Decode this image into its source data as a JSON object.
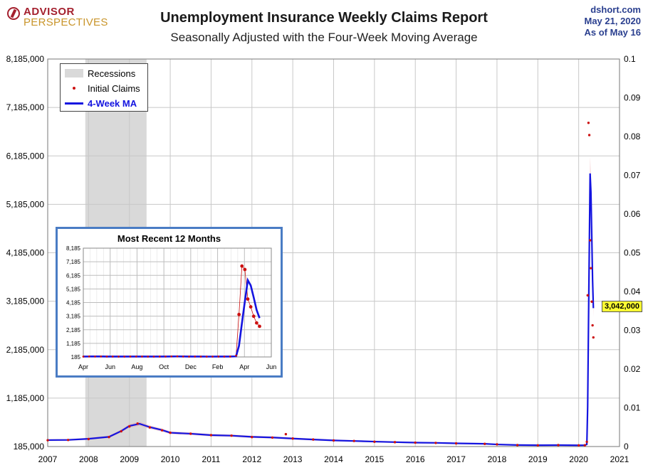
{
  "header": {
    "logo_line1": "ADVISOR",
    "logo_line2": "PERSPECTIVES",
    "title": "Unemployment Insurance Weekly Claims Report",
    "subtitle": "Seasonally Adjusted with the Four-Week Moving Average",
    "source": "dshort.com",
    "date": "May 21, 2020",
    "as_of": "As of May 16"
  },
  "legend": {
    "recessions": "Recessions",
    "initial_claims": "Initial Claims",
    "ma": "4-Week MA"
  },
  "callout": {
    "label": "3,042,000"
  },
  "colors": {
    "claims": "#cc1111",
    "ma": "#1414e0",
    "recession": "#d9d9d9",
    "inset_border": "#4a7cc4",
    "callout_bg": "#ffff33"
  },
  "chart_data": [
    {
      "type": "line",
      "title": "Unemployment Insurance Weekly Claims Report",
      "subtitle": "Seasonally Adjusted with the Four-Week Moving Average",
      "x_ticks": [
        "2007",
        "2008",
        "2009",
        "2010",
        "2011",
        "2012",
        "2013",
        "2014",
        "2015",
        "2016",
        "2017",
        "2018",
        "2019",
        "2020",
        "2021"
      ],
      "xlim": [
        2007,
        2021
      ],
      "y_ticks_left": [
        "185,000",
        "1,185,000",
        "2,185,000",
        "3,185,000",
        "4,185,000",
        "5,185,000",
        "6,185,000",
        "7,185,000",
        "8,185,000"
      ],
      "ylim_left": [
        185000,
        8185000
      ],
      "y_ticks_right": [
        "0",
        "0.01",
        "0.02",
        "0.03",
        "0.04",
        "0.05",
        "0.06",
        "0.07",
        "0.08",
        "0.09",
        "0.1"
      ],
      "ylim_right": [
        0,
        0.1
      ],
      "grid": true,
      "legend_position": "top-left",
      "recessions": [
        [
          2007.92,
          2009.42
        ]
      ],
      "series": [
        {
          "name": "Initial Claims",
          "style": "dots",
          "x": [
            2007.0,
            2007.5,
            2008.0,
            2008.5,
            2008.8,
            2009.0,
            2009.2,
            2009.5,
            2009.8,
            2010.0,
            2010.5,
            2011.0,
            2011.5,
            2012.0,
            2012.5,
            2012.83,
            2013.0,
            2013.5,
            2014.0,
            2014.5,
            2015.0,
            2015.5,
            2016.0,
            2016.5,
            2017.0,
            2017.7,
            2018.0,
            2018.5,
            2019.0,
            2019.5,
            2020.0,
            2020.15,
            2020.2,
            2020.22,
            2020.24,
            2020.26,
            2020.28,
            2020.3,
            2020.32,
            2020.34,
            2020.36
          ],
          "y": [
            315000,
            320000,
            340000,
            380000,
            500000,
            600000,
            660000,
            580000,
            520000,
            470000,
            450000,
            420000,
            410000,
            380000,
            370000,
            440000,
            350000,
            330000,
            310000,
            300000,
            285000,
            275000,
            265000,
            260000,
            250000,
            240000,
            230000,
            215000,
            210000,
            215000,
            210000,
            211000,
            282000,
            3307000,
            6867000,
            6615000,
            4442000,
            3867000,
            3176000,
            2687000,
            2438000
          ]
        },
        {
          "name": "4-Week MA",
          "style": "line",
          "x": [
            2007.0,
            2007.5,
            2008.0,
            2008.5,
            2008.8,
            2009.0,
            2009.25,
            2009.5,
            2009.8,
            2010.0,
            2010.5,
            2011.0,
            2011.5,
            2012.0,
            2012.5,
            2013.0,
            2013.5,
            2014.0,
            2014.5,
            2015.0,
            2015.5,
            2016.0,
            2016.5,
            2017.0,
            2017.7,
            2018.0,
            2018.5,
            2019.0,
            2019.5,
            2020.0,
            2020.15,
            2020.2,
            2020.22,
            2020.24,
            2020.26,
            2020.28,
            2020.3,
            2020.32,
            2020.34,
            2020.36
          ],
          "y": [
            318000,
            322000,
            345000,
            385000,
            505000,
            610000,
            655000,
            585000,
            525000,
            470000,
            450000,
            420000,
            410000,
            385000,
            372000,
            350000,
            330000,
            312000,
            300000,
            287000,
            276000,
            266000,
            261000,
            251000,
            242000,
            228000,
            216000,
            212000,
            214000,
            211000,
            212000,
            230000,
            1004000,
            2674000,
            4272000,
            5823000,
            5441000,
            4567000,
            3638000,
            3042000
          ]
        }
      ],
      "annotations": [
        "3,042,000"
      ]
    },
    {
      "type": "line",
      "title": "Most Recent 12 Months",
      "x_ticks": [
        "Apr",
        "Jun",
        "Aug",
        "Oct",
        "Dec",
        "Feb",
        "Apr",
        "Jun"
      ],
      "y_ticks": [
        "185",
        "1,185",
        "2,185",
        "3,185",
        "4,185",
        "5,185",
        "6,185",
        "7,185",
        "8,185"
      ],
      "ylim": [
        185,
        8185
      ],
      "y_unit": "thousands",
      "grid": true,
      "series": [
        {
          "name": "Initial Claims",
          "style": "dots",
          "x": [
            0,
            2,
            4,
            6,
            8,
            10,
            12,
            14,
            16,
            18,
            20,
            22,
            24,
            26,
            28,
            30,
            32,
            34,
            36,
            38,
            40,
            42,
            44,
            46,
            48,
            50,
            52,
            53,
            54,
            55,
            56,
            57,
            58,
            59,
            60,
            61,
            62
          ],
          "y": [
            211,
            225,
            218,
            222,
            216,
            214,
            210,
            212,
            215,
            216,
            217,
            213,
            211,
            214,
            218,
            224,
            227,
            216,
            212,
            215,
            211,
            210,
            212,
            214,
            211,
            215,
            282,
            3307,
            6867,
            6615,
            4442,
            3867,
            3176,
            2687,
            2438,
            0,
            0
          ]
        },
        {
          "name": "4-Week MA",
          "style": "line",
          "x": [
            0,
            2,
            4,
            6,
            8,
            10,
            12,
            14,
            16,
            18,
            20,
            22,
            24,
            26,
            28,
            30,
            32,
            34,
            36,
            38,
            40,
            42,
            44,
            46,
            48,
            50,
            52,
            53,
            54,
            55,
            56,
            57,
            58,
            59,
            60
          ],
          "y": [
            213,
            218,
            220,
            219,
            217,
            215,
            212,
            212,
            213,
            215,
            216,
            215,
            213,
            213,
            216,
            220,
            224,
            220,
            216,
            214,
            212,
            211,
            211,
            212,
            212,
            213,
            230,
            1004,
            2674,
            4272,
            5823,
            5441,
            4567,
            3638,
            3042
          ]
        }
      ]
    }
  ]
}
